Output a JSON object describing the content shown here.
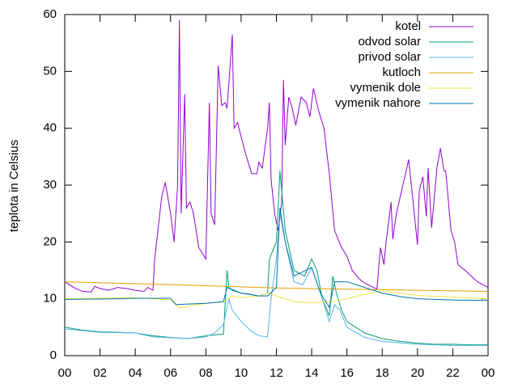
{
  "chart_data": {
    "type": "line",
    "ylabel": "teplota in Celsius",
    "xlim": [
      0,
      24
    ],
    "xticks": [
      {
        "value": 0,
        "label": "00"
      },
      {
        "value": 2,
        "label": "02"
      },
      {
        "value": 4,
        "label": "04"
      },
      {
        "value": 6,
        "label": "06"
      },
      {
        "value": 8,
        "label": "08"
      },
      10,
      12,
      14,
      16,
      18,
      20,
      22,
      {
        "value": 24,
        "label": "00"
      }
    ],
    "ylim": [
      0,
      60
    ],
    "yticks": [
      0,
      10,
      20,
      30,
      40,
      50,
      60
    ],
    "legend": "top-right",
    "series": [
      {
        "name": "kotel",
        "color": "#9400d3",
        "x": [
          0,
          0.5,
          1,
          1.5,
          1.7,
          2,
          2.5,
          3,
          3.5,
          4,
          4.5,
          4.7,
          5,
          5.1,
          5.5,
          5.7,
          6,
          6.2,
          6.4,
          6.5,
          6.6,
          6.8,
          6.9,
          7.1,
          7.3,
          7.6,
          8,
          8.2,
          8.3,
          8.5,
          8.7,
          8.9,
          9.1,
          9.2,
          9.4,
          9.5,
          9.6,
          9.8,
          10,
          10.3,
          10.6,
          10.9,
          11,
          11.2,
          11.5,
          11.6,
          11.7,
          11.9,
          12.1,
          12.3,
          12.4,
          12.5,
          12.7,
          12.9,
          13.1,
          13.4,
          13.7,
          13.9,
          14.1,
          14.4,
          14.7,
          15,
          15.3,
          15.7,
          16,
          16.3,
          16.7,
          17,
          17.5,
          17.7,
          17.9,
          18.1,
          18.2,
          18.5,
          18.6,
          18.8,
          19.1,
          19.5,
          20,
          20.1,
          20.3,
          20.5,
          20.6,
          20.8,
          21.1,
          21.3,
          21.5,
          21.6,
          21.9,
          22.1,
          22.3,
          22.7,
          23.4,
          24
        ],
        "values": [
          13,
          12,
          11.3,
          11.2,
          12.2,
          11.8,
          11.5,
          12,
          11.8,
          11.5,
          11.3,
          12,
          11.5,
          17,
          28,
          30.5,
          25,
          20,
          30,
          59,
          25,
          46,
          26,
          27,
          25,
          19,
          17,
          44.5,
          25,
          23,
          51,
          44,
          44.5,
          43.5,
          52,
          56.5,
          40,
          41,
          38.5,
          35,
          32,
          32,
          34,
          33,
          40,
          44.5,
          31,
          25,
          22,
          27,
          48.5,
          37,
          45.5,
          43.5,
          40.5,
          45.5,
          44.5,
          42,
          47,
          43,
          40,
          32,
          22,
          19,
          17.5,
          15,
          13.5,
          12.8,
          12,
          11.7,
          19,
          16,
          19.5,
          27,
          20.5,
          25,
          29,
          34.5,
          19.5,
          29,
          31.5,
          24.5,
          33,
          22.5,
          33,
          36.5,
          32.5,
          32.5,
          22,
          20,
          16,
          15,
          13,
          12
        ]
      },
      {
        "name": "odvod solar",
        "color": "#009e73",
        "x": [
          0,
          1,
          2,
          3,
          4,
          5,
          6,
          7,
          8,
          9,
          9.2,
          9.3,
          9.5,
          10,
          10.5,
          11,
          11.5,
          11.6,
          12,
          12.2,
          12.5,
          13,
          13.3,
          13.6,
          14,
          14.3,
          14.6,
          15,
          15.2,
          15.4,
          15.7,
          16,
          17,
          18,
          19,
          20,
          21,
          22,
          23,
          24
        ],
        "values": [
          5,
          4.5,
          4.2,
          4.1,
          4,
          3.5,
          3.2,
          3,
          3.5,
          3.8,
          15,
          12,
          11.5,
          11,
          10.8,
          10.5,
          11,
          17,
          20,
          32.5,
          22,
          15,
          14.5,
          14,
          17,
          15,
          10,
          7,
          14,
          11,
          8,
          6,
          4,
          3,
          2.5,
          2.2,
          2,
          2,
          1.9,
          1.9
        ]
      },
      {
        "name": "privod solar",
        "color": "#56b4e9",
        "x": [
          0,
          2,
          4,
          5,
          7,
          8,
          8.5,
          9,
          9.3,
          9.5,
          10,
          10.5,
          11,
          11.5,
          11.7,
          12,
          12.2,
          12.5,
          13,
          13.5,
          14,
          14.5,
          15,
          15.3,
          15.6,
          16,
          17,
          18,
          20,
          22,
          24
        ],
        "values": [
          4.7,
          4.1,
          4,
          3.3,
          3,
          3.3,
          4,
          5.5,
          10,
          8,
          6,
          4.5,
          3.5,
          3.3,
          10,
          17,
          25,
          20,
          13,
          12.5,
          15.5,
          11,
          6,
          9,
          8,
          5,
          3.2,
          2.5,
          2,
          1.8,
          1.8
        ]
      },
      {
        "name": "kutloch",
        "color": "#e69f00",
        "x": [
          0,
          6,
          12,
          18,
          24
        ],
        "values": [
          13,
          12.5,
          11.9,
          11.6,
          11.3
        ]
      },
      {
        "name": "vymenik dole",
        "color": "#f0e442",
        "x": [
          0,
          4,
          6,
          6.5,
          7,
          8,
          9,
          9.5,
          10,
          11,
          11.5,
          12,
          13,
          14,
          15,
          16,
          17,
          18,
          19,
          20,
          22,
          24
        ],
        "values": [
          10,
          10.2,
          9.8,
          8.4,
          8.7,
          9.2,
          9.5,
          10.5,
          10.2,
          10.5,
          11,
          10.5,
          9.5,
          9.3,
          9.5,
          10,
          10.8,
          11.4,
          11,
          10.6,
          10.3,
          10
        ]
      },
      {
        "name": "vymenik nahore",
        "color": "#0072b2",
        "x": [
          0,
          3,
          4,
          6,
          6.3,
          8,
          9,
          9.2,
          10,
          11,
          11.5,
          12,
          12.2,
          12.5,
          13,
          14,
          14.5,
          15,
          15.3,
          16,
          17,
          18,
          19,
          20,
          22,
          24
        ],
        "values": [
          9.9,
          10,
          10.1,
          10.1,
          9,
          9.2,
          9.5,
          12,
          11,
          10.5,
          10.5,
          12,
          26,
          20,
          14,
          15.5,
          11,
          8.5,
          13,
          13,
          12,
          11,
          10.4,
          10,
          9.8,
          9.7
        ]
      }
    ]
  }
}
